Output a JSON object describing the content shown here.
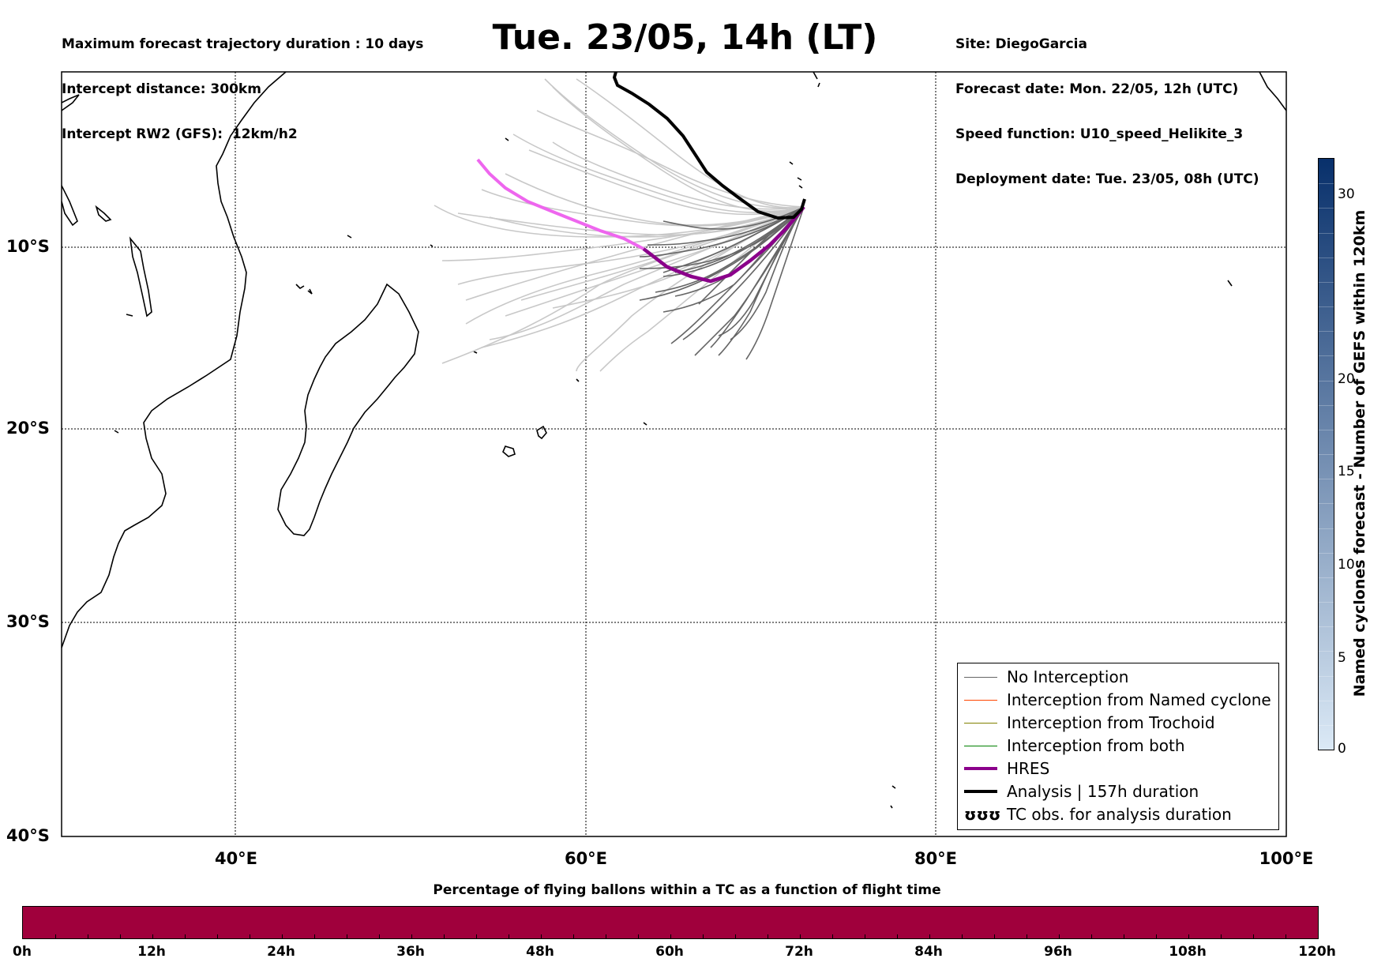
{
  "header": {
    "left_lines": [
      "Maximum forecast trajectory duration : 10 days",
      "Intercept distance: 300km",
      "Intercept RW2 (GFS):  12km/h2"
    ],
    "title": "Tue. 23/05, 14h (LT)",
    "right_lines": [
      "Site: DiegoGarcia",
      "Forecast date: Mon. 22/05, 12h (UTC)",
      "Speed function: U10_speed_Helikite_3",
      "Deployment date: Tue. 23/05, 08h (UTC)"
    ]
  },
  "map": {
    "lon_range": [
      30,
      100
    ],
    "lat_range": [
      -40,
      -1
    ],
    "lat_labels": [
      "10°S",
      "20°S",
      "30°S",
      "40°S"
    ],
    "lon_labels": [
      "40°E",
      "60°E",
      "80°E",
      "100°E"
    ],
    "grid": "dotted",
    "colors": {
      "no_interception": "#666666",
      "named_cyclone": "#ff4500",
      "trochoid": "#808000",
      "both": "#008000",
      "hres": "#8b008b",
      "hres_early": "#ee66ee",
      "analysis": "#000000",
      "ensemble_light": "#c8c8c8"
    }
  },
  "legend": {
    "items": [
      {
        "label": "No Interception",
        "color": "#666666",
        "width": 1
      },
      {
        "label": "Interception from Named cyclone",
        "color": "#ff4500",
        "width": 1
      },
      {
        "label": "Interception from Trochoid",
        "color": "#808000",
        "width": 1
      },
      {
        "label": "Interception from both",
        "color": "#008000",
        "width": 1
      },
      {
        "label": "HRES",
        "color": "#8b008b",
        "width": 4
      },
      {
        "label": "Analysis | 157h duration",
        "color": "#000000",
        "width": 4
      }
    ],
    "tc_obs": {
      "symbol": "ʊʊʊ",
      "label": "TC obs. for analysis duration"
    }
  },
  "right_colorbar": {
    "label": "Named cyclones forecast - Number of GEFS within 120km",
    "ticks": [
      "0",
      "5",
      "10",
      "15",
      "20",
      "30"
    ],
    "color_low": "#dbe9f6",
    "color_high": "#08306b"
  },
  "bottom_colorbar": {
    "title": "Percentage of flying ballons within a TC as a function of flight time",
    "ticks": [
      "0h",
      "12h",
      "24h",
      "36h",
      "48h",
      "60h",
      "72h",
      "84h",
      "96h",
      "108h",
      "120h"
    ],
    "color": "#a0003c"
  }
}
